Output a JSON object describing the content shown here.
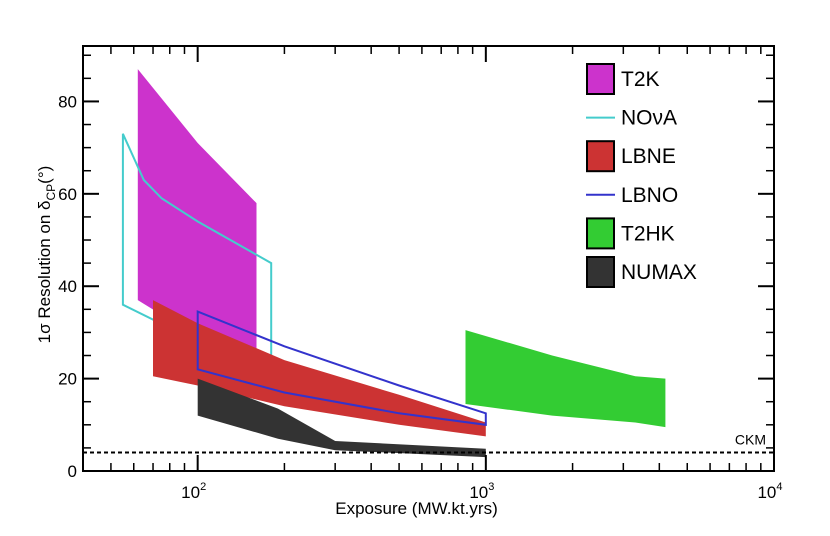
{
  "chart_data": {
    "type": "area",
    "title": "",
    "xlabel": "Exposure (MW.kt.yrs)",
    "ylabel": {
      "prefix": "1σ Resolution on δ",
      "subscript": "CP",
      "suffix": "(°)"
    },
    "xscale": "log",
    "xlim": [
      40,
      10000
    ],
    "ylim": [
      0,
      92
    ],
    "x_ticks": [
      {
        "base": "10",
        "exp": "2",
        "value": 100
      },
      {
        "base": "10",
        "exp": "3",
        "value": 1000
      },
      {
        "base": "10",
        "exp": "4",
        "value": 10000
      }
    ],
    "y_ticks": [
      {
        "label": "0",
        "value": 0
      },
      {
        "label": "20",
        "value": 20
      },
      {
        "label": "40",
        "value": 40
      },
      {
        "label": "60",
        "value": 60
      },
      {
        "label": "80",
        "value": 80
      }
    ],
    "legend_position": "top-right",
    "series": [
      {
        "name": "T2K",
        "style": "band",
        "color": "#cc33cc",
        "points": [
          [
            62,
            87
          ],
          [
            100,
            71
          ],
          [
            160,
            58
          ],
          [
            160,
            25
          ],
          [
            100,
            29
          ],
          [
            62,
            37
          ]
        ]
      },
      {
        "name": "NOνA",
        "style": "outline",
        "color": "#44cccc",
        "points": [
          [
            55,
            73
          ],
          [
            65,
            63
          ],
          [
            75,
            59
          ],
          [
            100,
            54
          ],
          [
            180,
            45
          ],
          [
            180,
            22
          ],
          [
            100,
            28
          ],
          [
            55,
            36
          ]
        ]
      },
      {
        "name": "LBNE",
        "style": "band",
        "color": "#cc3333",
        "points": [
          [
            70,
            37
          ],
          [
            100,
            32
          ],
          [
            200,
            24
          ],
          [
            500,
            16.5
          ],
          [
            1000,
            10.5
          ],
          [
            1000,
            7.5
          ],
          [
            500,
            10
          ],
          [
            200,
            14
          ],
          [
            100,
            18.5
          ],
          [
            70,
            20.5
          ]
        ]
      },
      {
        "name": "LBNO",
        "style": "outline",
        "color": "#3333cc",
        "points": [
          [
            100,
            34.5
          ],
          [
            200,
            27
          ],
          [
            500,
            18.5
          ],
          [
            1000,
            12.5
          ],
          [
            1000,
            10
          ],
          [
            500,
            12.5
          ],
          [
            200,
            17
          ],
          [
            100,
            22
          ]
        ]
      },
      {
        "name": "T2HK",
        "style": "band",
        "color": "#33cc33",
        "points": [
          [
            850,
            30.5
          ],
          [
            1700,
            25
          ],
          [
            3300,
            20.5
          ],
          [
            4200,
            20
          ],
          [
            4200,
            9.5
          ],
          [
            3300,
            10.5
          ],
          [
            1700,
            12
          ],
          [
            850,
            14.5
          ]
        ]
      },
      {
        "name": "NUMAX",
        "style": "band",
        "color": "#333333",
        "points": [
          [
            100,
            20
          ],
          [
            190,
            13.5
          ],
          [
            300,
            6.5
          ],
          [
            1000,
            4.8
          ],
          [
            1000,
            3
          ],
          [
            300,
            4.5
          ],
          [
            190,
            7
          ],
          [
            100,
            12
          ]
        ]
      }
    ],
    "reference_line": {
      "label": "CKM",
      "y": 4,
      "style": "dashed"
    }
  }
}
